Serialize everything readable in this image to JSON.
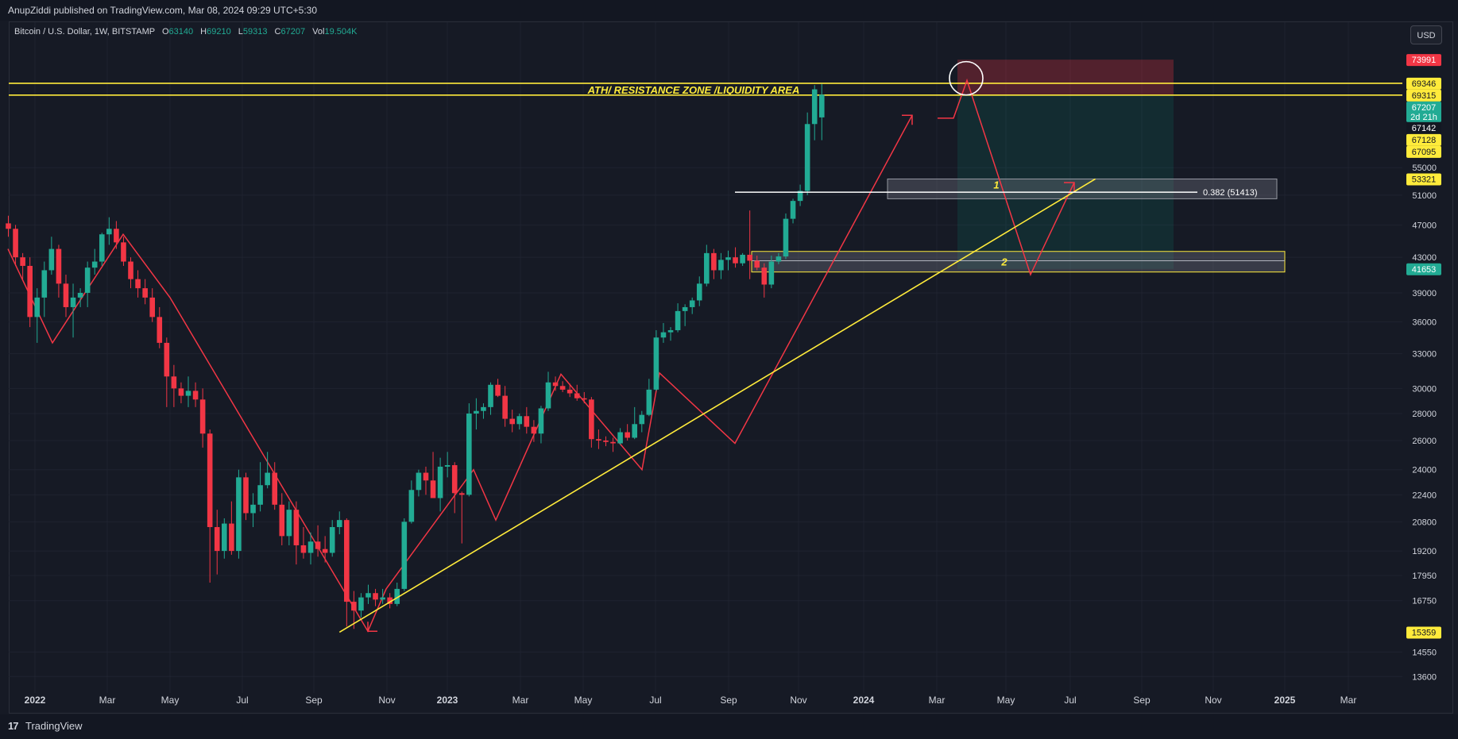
{
  "header": {
    "published_text": "AnupZiddi published on TradingView.com, Mar 08, 2024 09:29 UTC+5:30"
  },
  "legend": {
    "symbol": "Bitcoin / U.S. Dollar, 1W, BITSTAMP",
    "o_label": "O",
    "o_value": "63140",
    "h_label": "H",
    "h_value": "69210",
    "l_label": "L",
    "l_value": "59313",
    "c_label": "C",
    "c_value": "67207",
    "vol_label": "Vol",
    "vol_value": "19.504K"
  },
  "currency_button": "USD",
  "footer": {
    "logo": "17",
    "brand": "TradingView"
  },
  "colors": {
    "up": "#22ab94",
    "down": "#f23645",
    "yellow": "#ffeb3b",
    "pattern": "#f23645",
    "grid": "#1f2330"
  },
  "chart_data": {
    "type": "candlestick",
    "symbol": "BTCUSD",
    "interval": "1W",
    "y_scale": "log",
    "ylim": [
      13000,
      82000
    ],
    "x_ticks": [
      "2022",
      "Mar",
      "May",
      "Jul",
      "Sep",
      "Nov",
      "2023",
      "Mar",
      "May",
      "Jul",
      "Sep",
      "Nov",
      "2024",
      "Mar",
      "May",
      "Jul",
      "Sep",
      "Nov",
      "2025",
      "Mar"
    ],
    "y_ticks": [
      13600,
      14550,
      16750,
      17950,
      19200,
      20800,
      22400,
      24000,
      26000,
      28000,
      30000,
      33000,
      36000,
      39000,
      43000,
      47000,
      51000,
      55000
    ],
    "price_labels": [
      {
        "value": 73991,
        "text": "73991",
        "bg": "#f23645",
        "fg": "#ffffff"
      },
      {
        "value": 69346,
        "text": "69346",
        "bg": "#ffeb3b",
        "fg": "#131722"
      },
      {
        "value": 69315,
        "text": "69315",
        "bg": "#ffeb3b",
        "fg": "#131722"
      },
      {
        "value": 67207,
        "text": "67207",
        "sub": "2d 21h",
        "bg": "#22ab94",
        "fg": "#ffffff"
      },
      {
        "value": 67142,
        "text": "67142",
        "bg": "#131722",
        "fg": "#ffffff"
      },
      {
        "value": 67128,
        "text": "67128",
        "bg": "#ffeb3b",
        "fg": "#131722"
      },
      {
        "value": 67095,
        "text": "67095",
        "bg": "#ffeb3b",
        "fg": "#131722"
      },
      {
        "value": 53321,
        "text": "53321",
        "bg": "#ffeb3b",
        "fg": "#131722"
      },
      {
        "value": 41653,
        "text": "41653",
        "bg": "#22ab94",
        "fg": "#ffffff"
      },
      {
        "value": 15359,
        "text": "15359",
        "bg": "#ffeb3b",
        "fg": "#131722"
      }
    ],
    "candles": [
      [
        47200,
        48200,
        45500,
        46500
      ],
      [
        46500,
        47000,
        42000,
        43000
      ],
      [
        43000,
        43500,
        40500,
        42000
      ],
      [
        42000,
        43000,
        35500,
        36500
      ],
      [
        36500,
        39500,
        34000,
        38500
      ],
      [
        38500,
        42500,
        36500,
        41500
      ],
      [
        41500,
        45500,
        41000,
        44000
      ],
      [
        44000,
        44500,
        38500,
        40000
      ],
      [
        40000,
        41000,
        36500,
        37500
      ],
      [
        37500,
        40000,
        34500,
        38500
      ],
      [
        38500,
        39500,
        37500,
        39000
      ],
      [
        39000,
        42500,
        37500,
        41800
      ],
      [
        41800,
        44000,
        41000,
        42500
      ],
      [
        42500,
        46000,
        42000,
        45800
      ],
      [
        45800,
        48000,
        44500,
        46500
      ],
      [
        46500,
        47500,
        44000,
        44800
      ],
      [
        44800,
        45500,
        42000,
        42500
      ],
      [
        42500,
        43000,
        39500,
        40500
      ],
      [
        40500,
        41500,
        38500,
        39500
      ],
      [
        39500,
        40500,
        37800,
        38500
      ],
      [
        38500,
        39500,
        36000,
        36500
      ],
      [
        36500,
        37500,
        33500,
        34000
      ],
      [
        34000,
        34500,
        28500,
        31000
      ],
      [
        31000,
        32000,
        28500,
        30000
      ],
      [
        30000,
        30500,
        28800,
        29400
      ],
      [
        29400,
        31000,
        28500,
        29800
      ],
      [
        29800,
        30500,
        28500,
        29100
      ],
      [
        29100,
        30000,
        25500,
        26500
      ],
      [
        26500,
        26800,
        17600,
        20500
      ],
      [
        20500,
        21500,
        18000,
        19200
      ],
      [
        19200,
        21000,
        18800,
        20700
      ],
      [
        20700,
        22000,
        19000,
        19200
      ],
      [
        19200,
        24000,
        18800,
        23500
      ],
      [
        23500,
        23800,
        20900,
        21300
      ],
      [
        21300,
        22500,
        20500,
        21800
      ],
      [
        21800,
        24500,
        21400,
        23000
      ],
      [
        23000,
        25200,
        22800,
        23800
      ],
      [
        23800,
        24500,
        21500,
        21800
      ],
      [
        21800,
        22500,
        19500,
        20000
      ],
      [
        20000,
        22000,
        19500,
        21500
      ],
      [
        21500,
        22000,
        18500,
        19500
      ],
      [
        19500,
        20500,
        18800,
        19100
      ],
      [
        19100,
        20200,
        18500,
        19700
      ],
      [
        19700,
        20600,
        18900,
        19300
      ],
      [
        19300,
        20000,
        18600,
        19100
      ],
      [
        19100,
        20900,
        18900,
        20500
      ],
      [
        20500,
        21400,
        20100,
        20900
      ],
      [
        20900,
        21000,
        15600,
        16700
      ],
      [
        16700,
        17200,
        15500,
        16300
      ],
      [
        16300,
        17100,
        16000,
        16900
      ],
      [
        16900,
        17500,
        16600,
        17100
      ],
      [
        17100,
        17300,
        16500,
        16800
      ],
      [
        16800,
        17300,
        16600,
        16900
      ],
      [
        16900,
        17100,
        16400,
        16600
      ],
      [
        16600,
        17600,
        16500,
        17300
      ],
      [
        17300,
        21000,
        17200,
        20800
      ],
      [
        20800,
        23300,
        20700,
        22700
      ],
      [
        22700,
        24000,
        22300,
        23800
      ],
      [
        23800,
        24200,
        22400,
        23300
      ],
      [
        23300,
        25200,
        22300,
        22200
      ],
      [
        22200,
        24800,
        21400,
        24200
      ],
      [
        24200,
        25200,
        23500,
        24300
      ],
      [
        24300,
        24500,
        21300,
        22500
      ],
      [
        22500,
        22600,
        19600,
        22400
      ],
      [
        22400,
        28800,
        22300,
        28000
      ],
      [
        28000,
        29200,
        26800,
        28200
      ],
      [
        28200,
        28800,
        27600,
        28500
      ],
      [
        28500,
        30500,
        27900,
        30300
      ],
      [
        30300,
        30800,
        29300,
        29400
      ],
      [
        29400,
        30200,
        27000,
        27600
      ],
      [
        27600,
        28300,
        26600,
        27200
      ],
      [
        27200,
        28000,
        26800,
        27800
      ],
      [
        27800,
        28500,
        26500,
        27000
      ],
      [
        27000,
        27500,
        25900,
        26500
      ],
      [
        26500,
        28600,
        25800,
        28400
      ],
      [
        28400,
        31400,
        28200,
        30500
      ],
      [
        30500,
        31000,
        29800,
        30200
      ],
      [
        30200,
        30600,
        29700,
        29900
      ],
      [
        29900,
        30400,
        29300,
        29600
      ],
      [
        29600,
        30300,
        29000,
        29200
      ],
      [
        29200,
        29700,
        28800,
        29100
      ],
      [
        29100,
        29300,
        25500,
        26100
      ],
      [
        26100,
        26800,
        25400,
        26000
      ],
      [
        26000,
        26300,
        25600,
        25900
      ],
      [
        25900,
        26200,
        25200,
        25800
      ],
      [
        25800,
        26900,
        25700,
        26600
      ],
      [
        26600,
        27200,
        26000,
        26200
      ],
      [
        26200,
        28500,
        26100,
        27200
      ],
      [
        27200,
        28200,
        26600,
        27900
      ],
      [
        27900,
        30800,
        27800,
        29900
      ],
      [
        29900,
        35200,
        29800,
        34500
      ],
      [
        34500,
        35900,
        34000,
        35000
      ],
      [
        35000,
        35500,
        34200,
        35200
      ],
      [
        35200,
        37900,
        35000,
        37100
      ],
      [
        37100,
        37800,
        35600,
        37500
      ],
      [
        37500,
        38500,
        36800,
        38200
      ],
      [
        38200,
        40800,
        37600,
        40000
      ],
      [
        40000,
        44500,
        39700,
        43500
      ],
      [
        43500,
        44000,
        40500,
        41500
      ],
      [
        41500,
        43500,
        40500,
        42700
      ],
      [
        42700,
        43800,
        41500,
        43000
      ],
      [
        43000,
        44200,
        41800,
        42300
      ],
      [
        42300,
        43500,
        42000,
        43300
      ],
      [
        43300,
        48900,
        40500,
        42600
      ],
      [
        42600,
        43200,
        41500,
        41800
      ],
      [
        41800,
        42300,
        38500,
        39900
      ],
      [
        39900,
        43200,
        39500,
        42500
      ],
      [
        42500,
        43500,
        42200,
        43100
      ],
      [
        43100,
        48500,
        42800,
        47800
      ],
      [
        47800,
        50500,
        47200,
        50200
      ],
      [
        50200,
        52500,
        49500,
        51600
      ],
      [
        51600,
        64000,
        51000,
        62000
      ],
      [
        62000,
        69000,
        59300,
        68200
      ],
      [
        63140,
        69210,
        59313,
        67207
      ]
    ],
    "annotations": [
      {
        "type": "horizontal_zone",
        "label": "ATH/ RESISTANCE ZONE /LIQUIDITY AREA",
        "from": 67128,
        "to": 69346,
        "color": "#ffeb3b"
      },
      {
        "type": "zone",
        "label": "1",
        "from": 50500,
        "to": 53321,
        "color": "#ffffff"
      },
      {
        "type": "zone",
        "label": "2",
        "from": 41300,
        "to": 43700,
        "color": "#ffeb3b"
      },
      {
        "type": "fib_level",
        "label": "0.382 (51413)",
        "value": 51413
      },
      {
        "type": "trendline",
        "color": "#ffeb3b",
        "points": [
          [
            "2022-11-14",
            15359
          ],
          [
            "2024-11-18",
            53321
          ]
        ]
      },
      {
        "type": "position",
        "side": "short",
        "entry": 67142,
        "stop": 73991,
        "target": 41653
      }
    ]
  }
}
